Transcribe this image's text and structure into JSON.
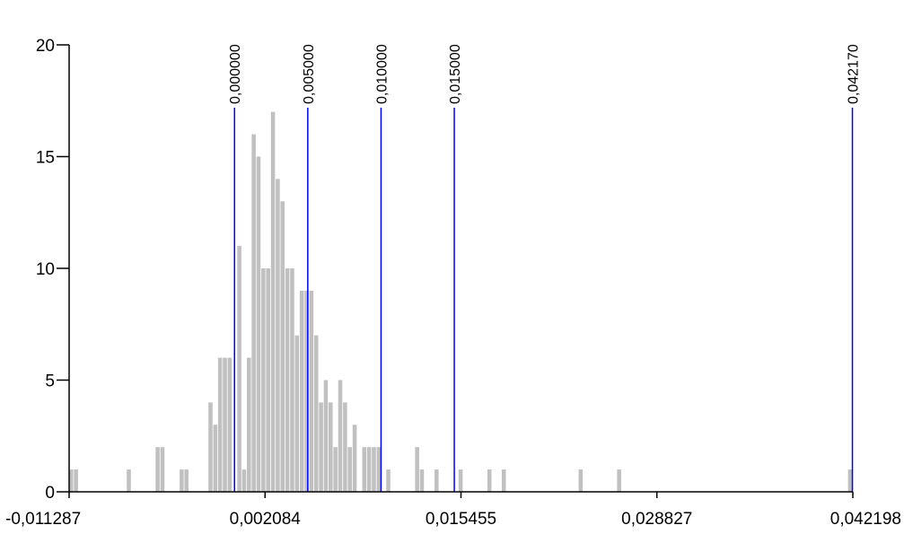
{
  "chart_data": {
    "type": "bar",
    "title": "",
    "xlabel": "",
    "ylabel": "",
    "xlim": [
      -0.011287,
      0.042198
    ],
    "ylim": [
      0,
      20
    ],
    "grid": false,
    "x_tick_labels": [
      {
        "value": -0.011287,
        "label": "-0,011287"
      },
      {
        "value": 0.002084,
        "label": "0,002084"
      },
      {
        "value": 0.015455,
        "label": "0,015455"
      },
      {
        "value": 0.028827,
        "label": "0,028827"
      },
      {
        "value": 0.042198,
        "label": "0,042198"
      }
    ],
    "y_tick_labels": [
      {
        "value": 0,
        "label": "0"
      },
      {
        "value": 5,
        "label": "5"
      },
      {
        "value": 10,
        "label": "10"
      },
      {
        "value": 15,
        "label": "15"
      },
      {
        "value": 20,
        "label": "20"
      }
    ],
    "bin_width": 0.000328,
    "bins": [
      {
        "x": -0.011287,
        "count": 1
      },
      {
        "x": -0.010959,
        "count": 1
      },
      {
        "x": -0.007353,
        "count": 1
      },
      {
        "x": -0.005386,
        "count": 2
      },
      {
        "x": -0.005058,
        "count": 2
      },
      {
        "x": -0.003747,
        "count": 1
      },
      {
        "x": -0.003419,
        "count": 1
      },
      {
        "x": -0.00178,
        "count": 4
      },
      {
        "x": -0.001452,
        "count": 3
      },
      {
        "x": -0.001124,
        "count": 6
      },
      {
        "x": -0.000796,
        "count": 6
      },
      {
        "x": -0.000468,
        "count": 6
      },
      {
        "x": 0.000188,
        "count": 11
      },
      {
        "x": 0.000516,
        "count": 1
      },
      {
        "x": 0.000844,
        "count": 6
      },
      {
        "x": 0.001172,
        "count": 16
      },
      {
        "x": 0.0015,
        "count": 15
      },
      {
        "x": 0.001828,
        "count": 10
      },
      {
        "x": 0.002156,
        "count": 10
      },
      {
        "x": 0.002484,
        "count": 17
      },
      {
        "x": 0.002812,
        "count": 14
      },
      {
        "x": 0.00314,
        "count": 13
      },
      {
        "x": 0.003468,
        "count": 10
      },
      {
        "x": 0.003796,
        "count": 10
      },
      {
        "x": 0.004124,
        "count": 7
      },
      {
        "x": 0.004452,
        "count": 9
      },
      {
        "x": 0.00478,
        "count": 9
      },
      {
        "x": 0.005108,
        "count": 9
      },
      {
        "x": 0.005436,
        "count": 7
      },
      {
        "x": 0.005764,
        "count": 4
      },
      {
        "x": 0.006092,
        "count": 5
      },
      {
        "x": 0.00642,
        "count": 4
      },
      {
        "x": 0.006748,
        "count": 2
      },
      {
        "x": 0.007076,
        "count": 5
      },
      {
        "x": 0.007404,
        "count": 4
      },
      {
        "x": 0.007732,
        "count": 2
      },
      {
        "x": 0.00806,
        "count": 3
      },
      {
        "x": 0.008716,
        "count": 2
      },
      {
        "x": 0.009044,
        "count": 2
      },
      {
        "x": 0.009372,
        "count": 2
      },
      {
        "x": 0.0097,
        "count": 2
      },
      {
        "x": 0.010356,
        "count": 1
      },
      {
        "x": 0.012323,
        "count": 2
      },
      {
        "x": 0.012651,
        "count": 1
      },
      {
        "x": 0.013651,
        "count": 1
      },
      {
        "x": 0.01529,
        "count": 1
      },
      {
        "x": 0.017257,
        "count": 1
      },
      {
        "x": 0.01824,
        "count": 1
      },
      {
        "x": 0.023486,
        "count": 1
      },
      {
        "x": 0.026109,
        "count": 1
      },
      {
        "x": 0.04187,
        "count": 1
      }
    ],
    "bar_color": "#c0c0c0",
    "marker_color": "#0000ff",
    "markers": [
      {
        "value": 0.0,
        "label": "0,000000"
      },
      {
        "value": 0.005,
        "label": "0,005000"
      },
      {
        "value": 0.01,
        "label": "0,010000"
      },
      {
        "value": 0.015,
        "label": "0,015000"
      },
      {
        "value": 0.04217,
        "label": "0,042170"
      }
    ]
  }
}
